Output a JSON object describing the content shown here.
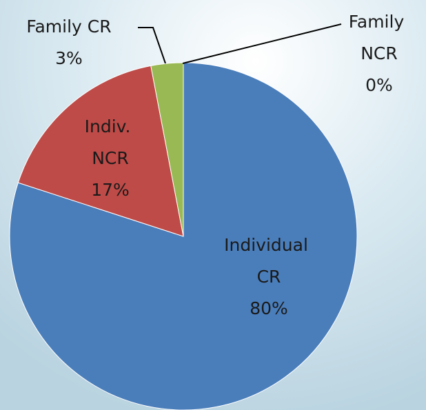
{
  "chart_data": {
    "type": "pie",
    "categories": [
      "Individual CR",
      "Indiv. NCR",
      "Family CR",
      "Family NCR"
    ],
    "values": [
      80,
      17,
      3,
      0
    ],
    "value_labels": [
      "80%",
      "17%",
      "3%",
      "0%"
    ],
    "colors": [
      "#4a7ebb",
      "#be4b48",
      "#98b954",
      "#7d60a0"
    ]
  }
}
